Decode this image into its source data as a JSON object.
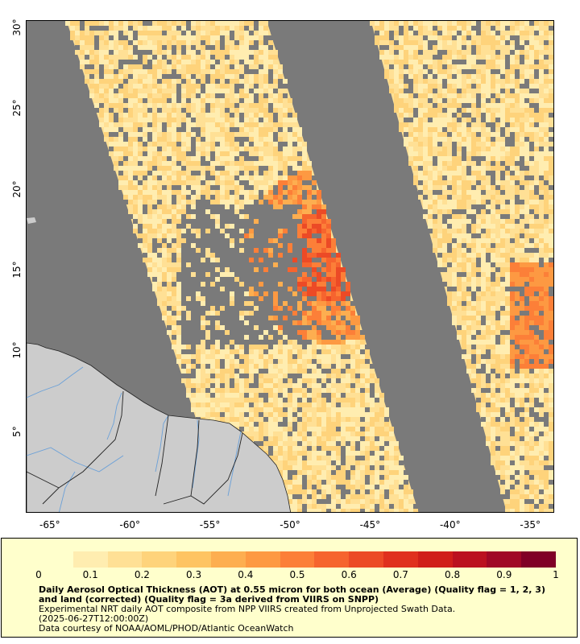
{
  "map": {
    "lon_min": -66.5,
    "lon_max": -33.5,
    "lat_min": 0,
    "lat_max": 30.5,
    "x_ticks": [
      "-65°",
      "-60°",
      "-55°",
      "-50°",
      "-45°",
      "-40°",
      "-35°"
    ],
    "x_tick_values": [
      -65,
      -60,
      -55,
      -50,
      -45,
      -40,
      -35
    ],
    "y_ticks": [
      "5°",
      "10°",
      "15°",
      "20°",
      "25°",
      "30°"
    ],
    "y_tick_values": [
      5,
      10,
      15,
      20,
      25,
      30
    ],
    "colors": {
      "no_data": "#7a7a7a",
      "land": "#cccccc",
      "rivers": "#6aa0d8",
      "borders": "#222222"
    },
    "swaths": [
      {
        "name": "swath-west",
        "corners_lonlat": [
          [
            -64,
            30.5
          ],
          [
            -51.5,
            30.5
          ],
          [
            -42,
            0
          ],
          [
            -54,
            0
          ]
        ]
      },
      {
        "name": "swath-east",
        "corners_lonlat": [
          [
            -45,
            30.5
          ],
          [
            -33.5,
            30.5
          ],
          [
            -33.5,
            0
          ],
          [
            -36.5,
            0
          ]
        ]
      }
    ]
  },
  "legend": {
    "min": 0,
    "max": 1,
    "tick_labels": [
      "0",
      "0.1",
      "0.2",
      "0.3",
      "0.4",
      "0.5",
      "0.6",
      "0.7",
      "0.8",
      "0.9",
      "1"
    ],
    "tick_values": [
      0,
      0.1,
      0.2,
      0.3,
      0.4,
      0.5,
      0.6,
      0.7,
      0.8,
      0.9,
      1
    ],
    "colors": [
      "#ffffcc",
      "#ffedb0",
      "#ffe095",
      "#fed37b",
      "#fec462",
      "#fdae50",
      "#fd9942",
      "#fc7f38",
      "#f6642e",
      "#ec4a26",
      "#e0301e",
      "#d01e1a",
      "#bb1120",
      "#a00826",
      "#800026"
    ],
    "title": "Daily Aerosol Optical Thickness (AOT) at 0.55 micron for both ocean (Average) (Quality flag = 1, 2, 3) and land (corrected) (Quality flag = 3a derived from VIIRS on SNPP)",
    "line1": "Experimental NRT daily AOT composite from NPP VIIRS created from Unprojected Swath Data.",
    "line2": "(2025-06-27T12:00:00Z)",
    "line3": "Data courtesy of NOAA/AOML/PHOD/Atlantic OceanWatch"
  }
}
